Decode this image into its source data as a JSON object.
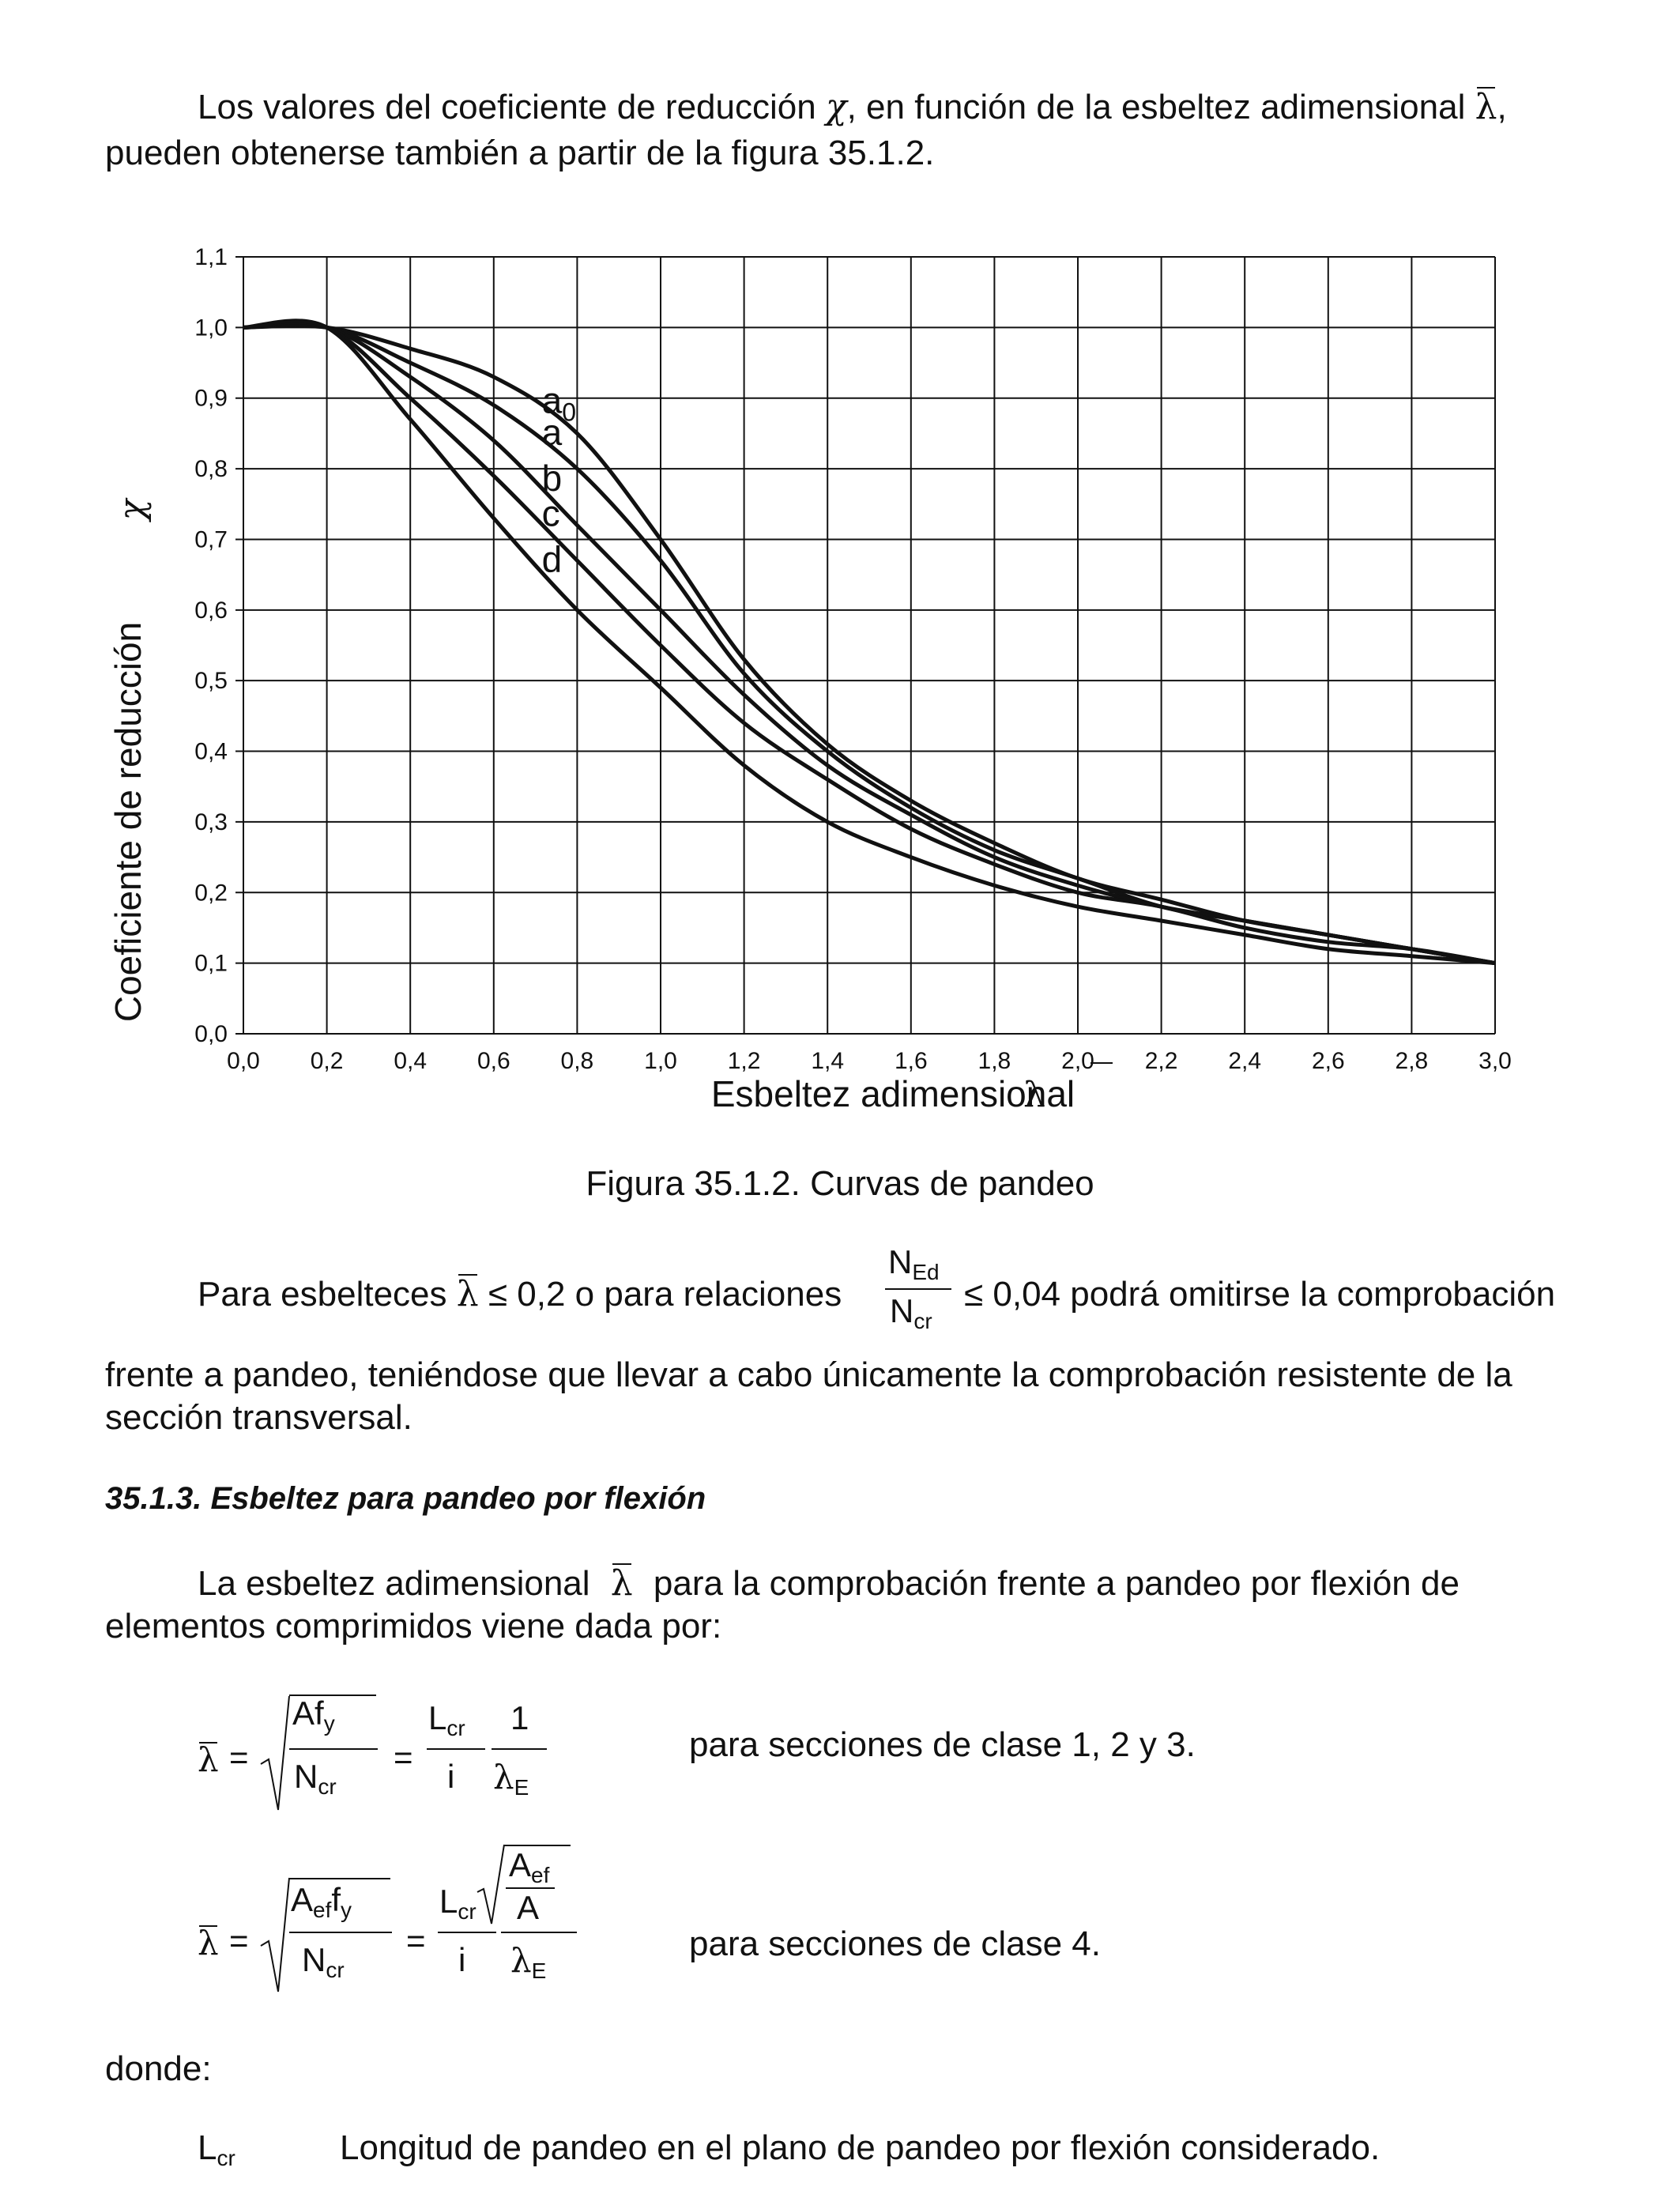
{
  "intro": {
    "line1_a": "Los valores del coeficiente de reducción",
    "line1_chi": "χ",
    "line1_b": ", en función de la esbeltez adimensional",
    "line1_lambda": "λ",
    "line1_c": ",",
    "line2": "pueden obtenerse también a partir de la figura 35.1.2."
  },
  "chart_data": {
    "type": "line",
    "xlabel": "Esbeltez adimensional",
    "xlabel_symbol": "λ",
    "ylabel": "Coeficiente de reducción",
    "ylabel_symbol": "χ",
    "xlim": [
      0.0,
      3.0
    ],
    "ylim": [
      0.0,
      1.1
    ],
    "x_ticks": [
      "0,0",
      "0,2",
      "0,4",
      "0,6",
      "0,8",
      "1,0",
      "1,2",
      "1,4",
      "1,6",
      "1,8",
      "2,0",
      "2,2",
      "2,4",
      "2,6",
      "2,8",
      "3,0"
    ],
    "y_ticks": [
      "0,0",
      "0,1",
      "0,2",
      "0,3",
      "0,4",
      "0,5",
      "0,6",
      "0,7",
      "0,8",
      "0,9",
      "1,0",
      "1,1"
    ],
    "grid": true,
    "x": [
      0.0,
      0.2,
      0.4,
      0.6,
      0.8,
      1.0,
      1.2,
      1.4,
      1.6,
      1.8,
      2.0,
      2.2,
      2.4,
      2.6,
      2.8,
      3.0
    ],
    "series": [
      {
        "name": "a0",
        "values": [
          1.0,
          1.0,
          0.97,
          0.93,
          0.85,
          0.7,
          0.53,
          0.41,
          0.33,
          0.27,
          0.22,
          0.19,
          0.16,
          0.14,
          0.12,
          0.1
        ]
      },
      {
        "name": "a",
        "values": [
          1.0,
          1.0,
          0.95,
          0.89,
          0.8,
          0.67,
          0.51,
          0.4,
          0.32,
          0.26,
          0.22,
          0.18,
          0.16,
          0.14,
          0.12,
          0.1
        ]
      },
      {
        "name": "b",
        "values": [
          1.0,
          1.0,
          0.93,
          0.84,
          0.72,
          0.6,
          0.48,
          0.38,
          0.31,
          0.25,
          0.21,
          0.18,
          0.16,
          0.14,
          0.12,
          0.1
        ]
      },
      {
        "name": "c",
        "values": [
          1.0,
          1.0,
          0.9,
          0.79,
          0.67,
          0.55,
          0.44,
          0.36,
          0.29,
          0.24,
          0.2,
          0.18,
          0.15,
          0.13,
          0.12,
          0.1
        ]
      },
      {
        "name": "d",
        "values": [
          1.0,
          1.0,
          0.87,
          0.73,
          0.6,
          0.49,
          0.38,
          0.3,
          0.25,
          0.21,
          0.18,
          0.16,
          0.14,
          0.12,
          0.11,
          0.1
        ]
      }
    ],
    "annotations": [
      "a0",
      "a",
      "b",
      "c",
      "d"
    ]
  },
  "caption": "Figura 35.1.2. Curvas de pandeo",
  "para2": {
    "a": "Para esbelteces",
    "lambda": "λ",
    "b": "≤ 0,2 o para relaciones",
    "num": "N",
    "num_sub": "Ed",
    "den": "N",
    "den_sub": "cr",
    "c": "≤ 0,04 podrá omitirse la comprobación",
    "line2": "frente a pandeo, teniéndose que llevar a cabo únicamente la comprobación resistente de la",
    "line3": "sección transversal."
  },
  "section": {
    "heading": "35.1.3. Esbeltez para pandeo por flexión"
  },
  "para3": {
    "a": "La esbeltez adimensional",
    "lambda": "λ",
    "b": "para la comprobación frente a pandeo por flexión de",
    "line2": "elementos comprimidos viene dada por:"
  },
  "formula1": {
    "lambda": "λ",
    "eq": "=",
    "num": "Af",
    "num_sub": "y",
    "den": "N",
    "den_sub": "cr",
    "eq2": "=",
    "l_num": "L",
    "l_num_sub": "cr",
    "l_den": "i",
    "one": "1",
    "lam_e": "λ",
    "lam_e_sub": "E",
    "desc": "para secciones de clase 1, 2 y 3."
  },
  "formula2": {
    "lambda": "λ",
    "eq": "=",
    "num": "A",
    "num_sub": "ef",
    "num_f": "f",
    "num_f_sub": "y",
    "den": "N",
    "den_sub": "cr",
    "eq2": "=",
    "l_num": "L",
    "l_num_sub": "cr",
    "l_den": "i",
    "r_num": "A",
    "r_num_sub": "ef",
    "r_den": "A",
    "lam_e": "λ",
    "lam_e_sub": "E",
    "desc": "para secciones de clase 4."
  },
  "donde": "donde:",
  "def1": {
    "sym": "L",
    "sym_sub": "cr",
    "text": "Longitud de pandeo en el plano de pandeo por flexión considerado."
  }
}
